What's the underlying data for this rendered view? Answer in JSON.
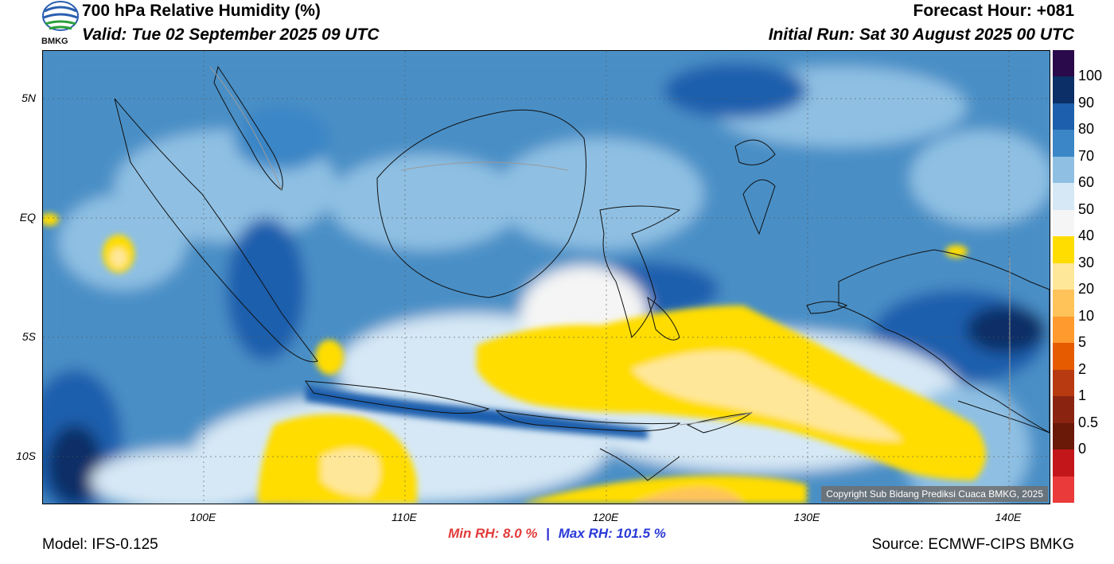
{
  "header": {
    "title": "700 hPa Relative Humidity (%)",
    "valid": "Valid: Tue 02 September 2025 09 UTC",
    "forecast_hour": "Forecast Hour: +081",
    "initial_run": "Initial Run: Sat 30 August 2025 00 UTC",
    "logo_text": "BMKG"
  },
  "map": {
    "copyright": "Copyright Sub Bidang Prediksi Cuaca BMKG, 2025",
    "lat_labels": [
      "5N",
      "EQ",
      "5S",
      "10S"
    ],
    "lon_labels": [
      "100E",
      "110E",
      "120E",
      "130E",
      "140E"
    ],
    "ocean_base_color": "#4a8fc6"
  },
  "colorbar": {
    "levels": [
      "100",
      "90",
      "80",
      "70",
      "60",
      "50",
      "40",
      "30",
      "20",
      "10",
      "5",
      "2",
      "1",
      "0.5",
      "0"
    ],
    "colors": [
      "#2a0a4a",
      "#0b2f66",
      "#1d5fad",
      "#3b86c6",
      "#8fc0e3",
      "#d6e8f5",
      "#f5f5f5",
      "#ffdd00",
      "#ffe79a",
      "#ffc35a",
      "#ff9b2e",
      "#e65a00",
      "#b73a10",
      "#8a2410",
      "#6a1808",
      "#c3161b",
      "#ea3a3a"
    ]
  },
  "stats": {
    "min_rh": "Min RH:   8.0 %",
    "separator": "|",
    "max_rh": "Max RH: 101.5 %"
  },
  "footer": {
    "model": "Model: IFS-0.125",
    "source": "Source: ECMWF-CIPS BMKG"
  }
}
